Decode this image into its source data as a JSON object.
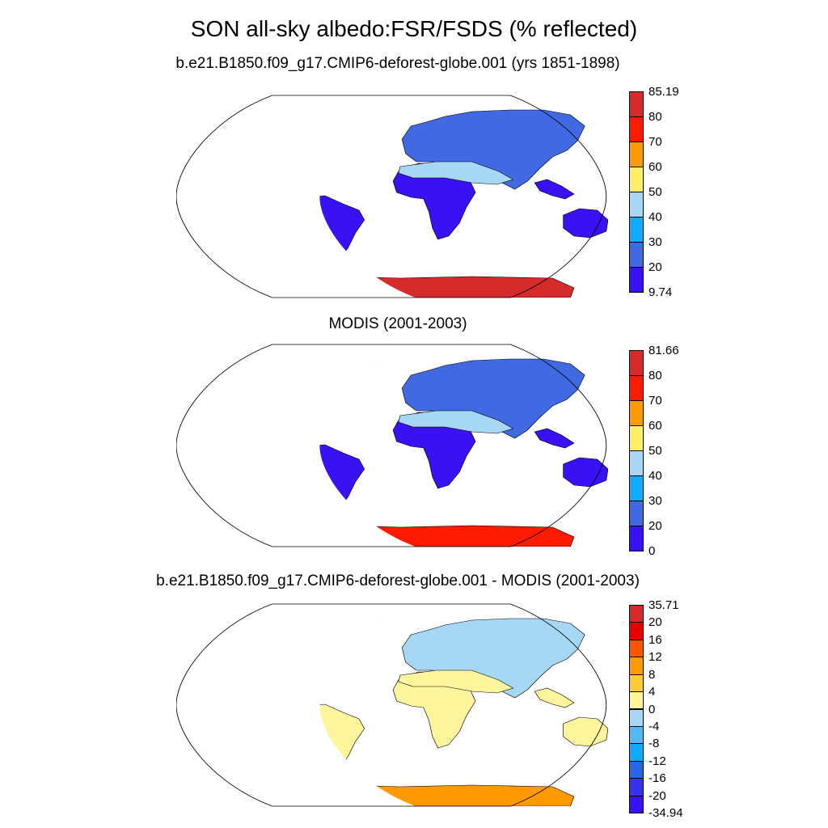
{
  "title": "SON all-sky albedo:FSR/FSDS (% reflected)",
  "panels": [
    {
      "title": "b.e21.B1850.f09_g17.CMIP6-deforest-globe.001 (yrs 1851-1898)",
      "colorbar": {
        "labels": [
          "85.19",
          "80",
          "70",
          "60",
          "50",
          "40",
          "30",
          "20",
          "9.74"
        ],
        "colors": [
          "#d62b2b",
          "#ff1a00",
          "#ff9900",
          "#ffee66",
          "#a6d8f5",
          "#12aaff",
          "#4169e1",
          "#3a10f5"
        ]
      },
      "fields": {
        "continents": "#3a10f5",
        "deserts": "#a6d8f5",
        "eurasia": "#4169e1",
        "greenland": "#d62b2b",
        "arctic": "#4169e1",
        "antarctica": "#d62b2b"
      }
    },
    {
      "title": "MODIS (2001-2003)",
      "colorbar": {
        "labels": [
          "81.66",
          "80",
          "70",
          "60",
          "50",
          "40",
          "30",
          "20",
          "0"
        ],
        "colors": [
          "#d62b2b",
          "#ff1a00",
          "#ff9900",
          "#ffee66",
          "#a6d8f5",
          "#12aaff",
          "#4169e1",
          "#3a10f5"
        ]
      },
      "fields": {
        "continents": "#3a10f5",
        "deserts": "#a6d8f5",
        "eurasia": "#4169e1",
        "greenland": "#ff9900",
        "arctic": "#ffee66",
        "antarctica": "#ff1a00"
      }
    },
    {
      "title": "b.e21.B1850.f09_g17.CMIP6-deforest-globe.001 - MODIS (2001-2003)",
      "colorbar": {
        "labels": [
          "35.71",
          "20",
          "16",
          "12",
          "8",
          "4",
          "0",
          "-4",
          "-8",
          "-12",
          "-16",
          "-20",
          "-34.94"
        ],
        "colors": [
          "#d62b2b",
          "#e60000",
          "#ff5500",
          "#ff9900",
          "#ffcc33",
          "#fff59d",
          "#a6d8f5",
          "#56b8f0",
          "#12aaff",
          "#2a66e8",
          "#3a30f0",
          "#3a10f5"
        ]
      },
      "fields": {
        "continents": "#fff59d",
        "deserts": "#fff59d",
        "eurasia": "#a6d8f5",
        "greenland": "#d62b2b",
        "arctic": "#3a30f0",
        "antarctica": "#ff9900"
      }
    }
  ]
}
